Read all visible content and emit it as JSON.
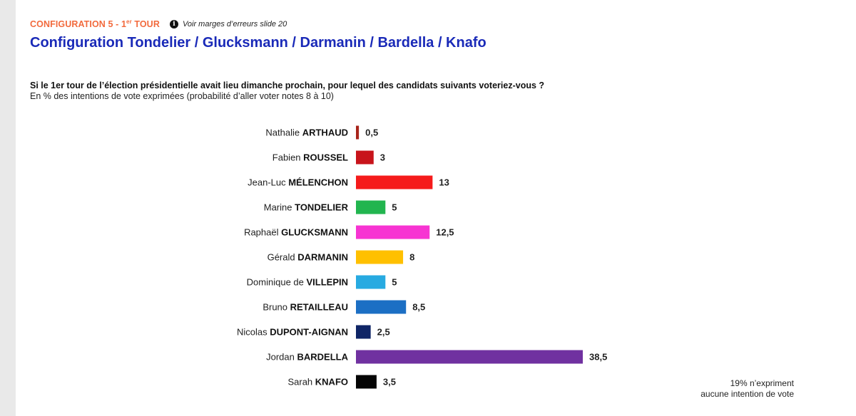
{
  "header": {
    "config_label": "CONFIGURATION 5 - 1",
    "config_sup": "er",
    "config_suffix": " TOUR",
    "info_glyph": "i",
    "margin_note": "Voir marges d’erreurs slide 20",
    "title": "Configuration Tondelier / Glucksmann / Darmanin / Bardella / Knafo"
  },
  "question": "Si le 1er tour de l’élection présidentielle avait lieu dimanche prochain, pour lequel des candidats suivants voteriez-vous ?",
  "subtitle": "En % des intentions de vote exprimées (probabilité d’aller voter notes 8 à 10)",
  "footnote": {
    "line1": "19% n’expriment",
    "line2": "aucune intention de vote"
  },
  "chart_data": {
    "type": "bar",
    "orientation": "horizontal",
    "candidates": [
      {
        "first": "Nathalie",
        "last": "ARTHAUD",
        "value": 0.5,
        "label": "0,5",
        "color": "#a8251b"
      },
      {
        "first": "Fabien",
        "last": "ROUSSEL",
        "value": 3,
        "label": "3",
        "color": "#c8141b"
      },
      {
        "first": "Jean-Luc",
        "last": "MÉLENCHON",
        "value": 13,
        "label": "13",
        "color": "#f51b1b"
      },
      {
        "first": "Marine",
        "last": "TONDELIER",
        "value": 5,
        "label": "5",
        "color": "#22b54f"
      },
      {
        "first": "Raphaël",
        "last": "GLUCKSMANN",
        "value": 12.5,
        "label": "12,5",
        "color": "#f734d2"
      },
      {
        "first": "Gérald",
        "last": "DARMANIN",
        "value": 8,
        "label": "8",
        "color": "#ffc000"
      },
      {
        "first": "Dominique de",
        "last": "VILLEPIN",
        "value": 5,
        "label": "5",
        "color": "#27aae1"
      },
      {
        "first": "Bruno",
        "last": "RETAILLEAU",
        "value": 8.5,
        "label": "8,5",
        "color": "#1c6fc4"
      },
      {
        "first": "Nicolas",
        "last": "DUPONT-AIGNAN",
        "value": 2.5,
        "label": "2,5",
        "color": "#0f2566"
      },
      {
        "first": "Jordan",
        "last": "BARDELLA",
        "value": 38.5,
        "label": "38,5",
        "color": "#7031a0"
      },
      {
        "first": "Sarah",
        "last": "KNAFO",
        "value": 3.5,
        "label": "3,5",
        "color": "#050505"
      }
    ],
    "xlim": [
      0,
      38.5
    ],
    "grid": false
  }
}
